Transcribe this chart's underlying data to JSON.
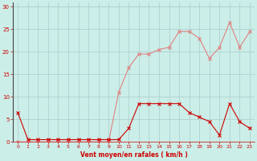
{
  "x": [
    0,
    1,
    2,
    3,
    4,
    5,
    6,
    7,
    8,
    9,
    10,
    11,
    12,
    13,
    14,
    15,
    16,
    17,
    18,
    19,
    20,
    21,
    22,
    23
  ],
  "y_dark": [
    6.5,
    0.5,
    0.5,
    0.5,
    0.5,
    0.5,
    0.5,
    0.5,
    0.5,
    0.5,
    0.5,
    3.0,
    8.5,
    8.5,
    8.5,
    8.5,
    8.5,
    6.5,
    5.5,
    4.5,
    1.5,
    8.5,
    4.5,
    3.0
  ],
  "y_light": [
    0,
    0,
    0,
    0,
    0,
    0,
    0,
    0,
    0,
    0,
    11.0,
    16.5,
    19.5,
    19.5,
    20.5,
    21.0,
    24.5,
    24.5,
    23.0,
    18.5,
    21.0,
    26.5,
    21.0,
    24.5
  ],
  "color_dark": "#cc0000",
  "color_light": "#e08080",
  "bg_color": "#cceee8",
  "grid_color": "#aacccc",
  "xlabel": "Vent moyen/en rafales ( km/h )",
  "xlabel_color": "#cc0000",
  "tick_color": "#cc0000",
  "xlim": [
    -0.5,
    23.5
  ],
  "ylim": [
    0,
    31
  ],
  "yticks": [
    0,
    5,
    10,
    15,
    20,
    25,
    30
  ],
  "xticks": [
    0,
    1,
    2,
    3,
    4,
    5,
    6,
    7,
    8,
    9,
    10,
    11,
    12,
    13,
    14,
    15,
    16,
    17,
    18,
    19,
    20,
    21,
    22,
    23
  ],
  "figsize": [
    3.2,
    2.0
  ],
  "dpi": 100
}
